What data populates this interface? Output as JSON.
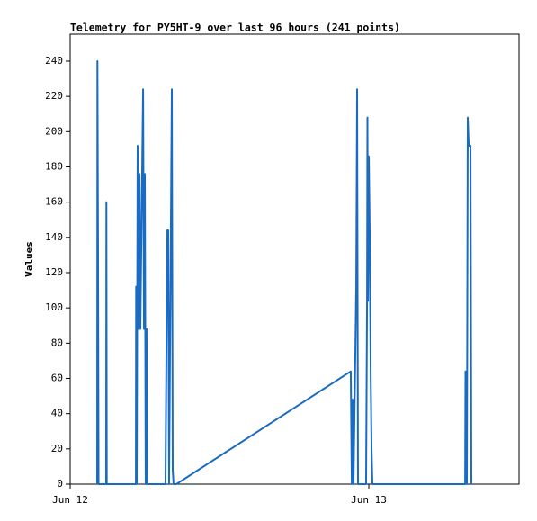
{
  "chart_data": {
    "type": "line",
    "title": "Telemetry for PY5HT-9 over last 96 hours (241 points)",
    "y_label": "Values",
    "color": "#1a6bc4",
    "x": [
      2.17,
      2.19,
      2.24,
      2.28,
      2.89,
      2.91,
      2.94,
      5.28,
      5.3,
      5.35,
      5.42,
      5.49,
      5.57,
      5.64,
      5.86,
      5.93,
      6.0,
      6.07,
      6.14,
      6.18,
      7.66,
      7.73,
      7.81,
      7.88,
      7.95,
      8.17,
      8.24,
      8.31,
      8.53,
      22.55,
      22.63,
      22.7,
      22.77,
      22.99,
      23.06,
      23.13,
      23.78,
      23.86,
      23.89,
      23.93,
      24.0,
      24.07,
      24.15,
      24.22,
      24.29,
      31.74,
      31.77,
      31.81,
      31.88,
      31.95,
      32.03,
      32.1,
      32.17,
      32.24
    ],
    "values": [
      0,
      240,
      128,
      0,
      0,
      160,
      0,
      0,
      112,
      0,
      192,
      88,
      176,
      88,
      224,
      88,
      176,
      0,
      88,
      0,
      0,
      72,
      144,
      144,
      0,
      224,
      8,
      0,
      0,
      64,
      0,
      48,
      0,
      112,
      224,
      0,
      0,
      104,
      208,
      104,
      186,
      144,
      62,
      20,
      0,
      0,
      64,
      32,
      0,
      208,
      192,
      192,
      192,
      0
    ],
    "xlim": [
      0,
      36.07
    ],
    "xticks": [
      {
        "value": 0,
        "label": "Jun 12"
      },
      {
        "value": 24,
        "label": "Jun 13"
      }
    ],
    "ylim": [
      0,
      255.3
    ],
    "yticks": [
      0,
      20,
      40,
      60,
      80,
      100,
      120,
      140,
      160,
      180,
      200,
      220,
      240
    ]
  }
}
